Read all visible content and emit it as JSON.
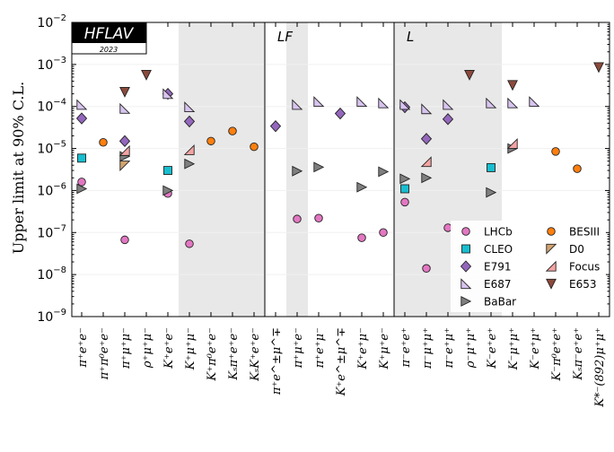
{
  "chart_data": {
    "type": "scatter",
    "title": "",
    "ylabel": "Upper limit at 90% C.L.",
    "xlabel": "",
    "yscale": "log",
    "ylim": [
      1e-09,
      0.01
    ],
    "ytick_labels": [
      "10^-9",
      "10^-8",
      "10^-7",
      "10^-6",
      "10^-5",
      "10^-4",
      "10^-3",
      "10^-2"
    ],
    "ytick_values": [
      1e-09,
      1e-08,
      1e-07,
      1e-06,
      1e-05,
      0.0001,
      0.001,
      0.01
    ],
    "logo": {
      "main": "HFLAV",
      "year": "2023"
    },
    "regions": [
      {
        "label": "",
        "from": 0,
        "to": 8
      },
      {
        "label": "LF",
        "from": 9,
        "to": 14
      },
      {
        "label": "L",
        "from": 15,
        "to": 24
      }
    ],
    "shaded_bands": [
      [
        4.5,
        8.5
      ],
      [
        9.5,
        9.5
      ],
      [
        14.5,
        19.5
      ]
    ],
    "categories": [
      "π⁺e⁺e⁻",
      "π⁺π⁰e⁺e⁻",
      "π⁺μ⁺μ⁻",
      "ρ⁺μ⁺μ⁻",
      "K⁺e⁺e⁻",
      "K⁺μ⁺μ⁻",
      "K⁺π⁰e⁺e⁻",
      "Kₛπ⁺e⁺e⁻",
      "KₛK⁺e⁺e⁻",
      "π⁺e^±μ^∓",
      "π⁺μ⁺e⁻",
      "π⁺e⁺μ⁻",
      "K⁺e^±μ^∓",
      "K⁺e⁺μ⁻",
      "K⁺μ⁺e⁻",
      "π⁻e⁺e⁺",
      "π⁻μ⁺μ⁺",
      "π⁻e⁺μ⁺",
      "ρ⁻μ⁺μ⁺",
      "K⁻e⁺e⁺",
      "K⁻μ⁺μ⁺",
      "K⁻e⁺μ⁺",
      "K⁻π⁰e⁺e⁺",
      "Kₛπ⁻e⁺e⁺",
      "K*⁻(892)μ⁺μ⁺"
    ],
    "legend": {
      "placement": "lower-right",
      "columns": [
        [
          "LHCb",
          "CLEO",
          "E791",
          "E687",
          "BaBar"
        ],
        [
          "BESIII",
          "D0",
          "Focus",
          "E653"
        ]
      ]
    },
    "series": [
      {
        "name": "LHCb",
        "marker": "circle",
        "color": "#e377c2",
        "points": [
          [
            0,
            1.6e-06
          ],
          [
            2,
            6.7e-08
          ],
          [
            4,
            8.5e-07
          ],
          [
            5,
            5.4e-08
          ],
          [
            10,
            2.1e-07
          ],
          [
            11,
            2.2e-07
          ],
          [
            13,
            7.5e-08
          ],
          [
            14,
            1e-07
          ],
          [
            15,
            5.3e-07
          ],
          [
            16,
            1.4e-08
          ],
          [
            17,
            1.3e-07
          ]
        ]
      },
      {
        "name": "CLEO",
        "marker": "square",
        "color": "#17becf",
        "points": [
          [
            0,
            5.9e-06
          ],
          [
            4,
            3e-06
          ],
          [
            15,
            1.1e-06
          ],
          [
            19,
            3.5e-06
          ]
        ]
      },
      {
        "name": "E791",
        "marker": "diamond",
        "color": "#9467bd",
        "points": [
          [
            0,
            5.2e-05
          ],
          [
            2,
            1.5e-05
          ],
          [
            4,
            0.0002
          ],
          [
            5,
            4.4e-05
          ],
          [
            9,
            3.4e-05
          ],
          [
            12,
            6.8e-05
          ],
          [
            15,
            9.6e-05
          ],
          [
            16,
            1.7e-05
          ],
          [
            17,
            5e-05
          ]
        ]
      },
      {
        "name": "E687",
        "marker": "tri-upright",
        "color": "#d8c4ef",
        "points": [
          [
            0,
            0.00011
          ],
          [
            2,
            8.9e-05
          ],
          [
            4,
            0.0002
          ],
          [
            5,
            9.7e-05
          ],
          [
            10,
            0.00011
          ],
          [
            11,
            0.00013
          ],
          [
            13,
            0.00013
          ],
          [
            14,
            0.00012
          ],
          [
            15,
            0.00011
          ],
          [
            16,
            8.7e-05
          ],
          [
            17,
            0.00011
          ],
          [
            19,
            0.00012
          ],
          [
            20,
            0.00012
          ],
          [
            21,
            0.00013
          ]
        ]
      },
      {
        "name": "BaBar",
        "marker": "tri-right",
        "color": "#7f7f7f",
        "points": [
          [
            0,
            1.1e-06
          ],
          [
            2,
            6.5e-06
          ],
          [
            4,
            1e-06
          ],
          [
            5,
            4.3e-06
          ],
          [
            10,
            2.9e-06
          ],
          [
            11,
            3.6e-06
          ],
          [
            13,
            1.2e-06
          ],
          [
            14,
            2.8e-06
          ],
          [
            15,
            1.9e-06
          ],
          [
            16,
            2e-06
          ],
          [
            19,
            9e-07
          ],
          [
            20,
            1e-05
          ]
        ]
      },
      {
        "name": "BESIII",
        "marker": "circle",
        "color": "#ff7f0e",
        "points": [
          [
            1,
            1.4e-05
          ],
          [
            6,
            1.5e-05
          ],
          [
            7,
            2.6e-05
          ],
          [
            8,
            1.1e-05
          ],
          [
            22,
            8.5e-06
          ],
          [
            23,
            3.3e-06
          ]
        ]
      },
      {
        "name": "D0",
        "marker": "tri-lowerleft",
        "color": "#d2a36f",
        "points": [
          [
            2,
            3.9e-06
          ]
        ]
      },
      {
        "name": "Focus",
        "marker": "tri-lowerright",
        "color": "#f4a3a3",
        "points": [
          [
            2,
            8.8e-06
          ],
          [
            5,
            9.2e-06
          ],
          [
            16,
            4.8e-06
          ],
          [
            20,
            1.3e-05
          ]
        ]
      },
      {
        "name": "E653",
        "marker": "tri-down",
        "color": "#8c4a3c",
        "points": [
          [
            2,
            0.00022
          ],
          [
            3,
            0.00056
          ],
          [
            18,
            0.00056
          ],
          [
            20,
            0.00032
          ],
          [
            24,
            0.00085
          ]
        ]
      }
    ]
  }
}
